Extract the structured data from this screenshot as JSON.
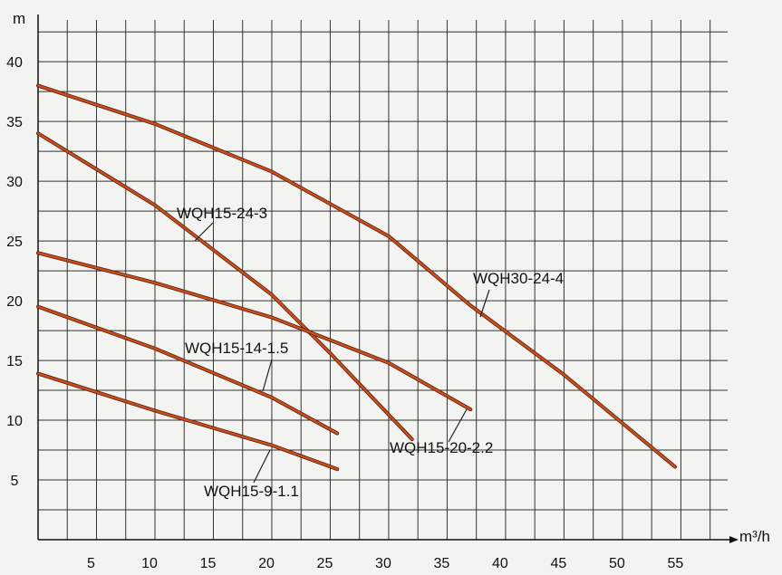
{
  "chart_data": {
    "type": "line",
    "x_label": "m³/h",
    "y_label": "m",
    "xlim": [
      0,
      59
    ],
    "ylim": [
      0,
      43.5
    ],
    "xticks": [
      5,
      10,
      15,
      20,
      25,
      30,
      35,
      40,
      45,
      50,
      55
    ],
    "yticks": [
      5,
      10,
      15,
      20,
      25,
      30,
      35,
      40
    ],
    "xgrid": [
      2.5,
      5,
      7.5,
      10,
      12.5,
      15,
      17.5,
      20,
      22.5,
      25,
      27.5,
      30,
      32.5,
      35,
      37.5,
      40,
      42.5,
      45,
      47.5,
      50,
      52.5,
      55,
      57.5
    ],
    "ygrid": [
      2.5,
      5,
      7.5,
      10,
      12.5,
      15,
      17.5,
      20,
      22.5,
      25,
      27.5,
      30,
      32.5,
      35,
      37.5,
      40,
      42.5
    ],
    "grid": true,
    "series": [
      {
        "name": "WQH30-24-4",
        "color": "#c8501e",
        "x": [
          0,
          10,
          20,
          30,
          37,
          45,
          54.5
        ],
        "values": [
          38,
          34.8,
          30.8,
          25.4,
          19.6,
          13.8,
          6.1
        ]
      },
      {
        "name": "WQH15-24-3",
        "color": "#c8501e",
        "x": [
          0,
          10,
          20,
          25,
          32
        ],
        "values": [
          34,
          28,
          20.5,
          15.6,
          8.4
        ]
      },
      {
        "name": "WQH15-20-2.2",
        "color": "#c8501e",
        "x": [
          0,
          10,
          20,
          30,
          37
        ],
        "values": [
          24,
          21.5,
          18.6,
          14.8,
          10.9
        ]
      },
      {
        "name": "WQH15-14-1.5",
        "color": "#c8501e",
        "x": [
          0,
          10,
          20,
          25.6
        ],
        "values": [
          19.5,
          16,
          11.9,
          8.9
        ]
      },
      {
        "name": "WQH15-9-1.1",
        "color": "#c8501e",
        "x": [
          0,
          10,
          20,
          25.6
        ],
        "values": [
          13.9,
          10.8,
          7.9,
          5.9
        ]
      }
    ]
  }
}
